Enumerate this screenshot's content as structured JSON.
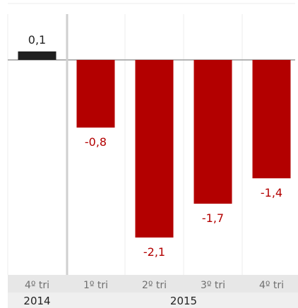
{
  "colors": {
    "positive": "#1f1f1f",
    "negative": "#b30000",
    "label_positive": "#222222",
    "label_negative": "#b30000",
    "tick_band": "#e7e7e7",
    "year_band": "#efefef",
    "grid": "#ececec",
    "zero_line": "#9a9a9a",
    "group_divider": "#cfcfcf"
  },
  "chart_data": {
    "type": "bar",
    "categories": [
      "4º tri",
      "1º tri",
      "2º tri",
      "3º tri",
      "4º tri"
    ],
    "values": [
      0.1,
      -0.8,
      -2.1,
      -1.7,
      -1.4
    ],
    "value_labels": [
      "0,1",
      "-0,8",
      "-2,1",
      "-1,7",
      "-1,4"
    ],
    "groups": [
      {
        "label": "2014",
        "categories": 1
      },
      {
        "label": "2015",
        "categories": 4
      }
    ],
    "ylim": [
      -2.5,
      0.5
    ],
    "grid": true,
    "title": "",
    "xlabel": "",
    "ylabel": ""
  }
}
